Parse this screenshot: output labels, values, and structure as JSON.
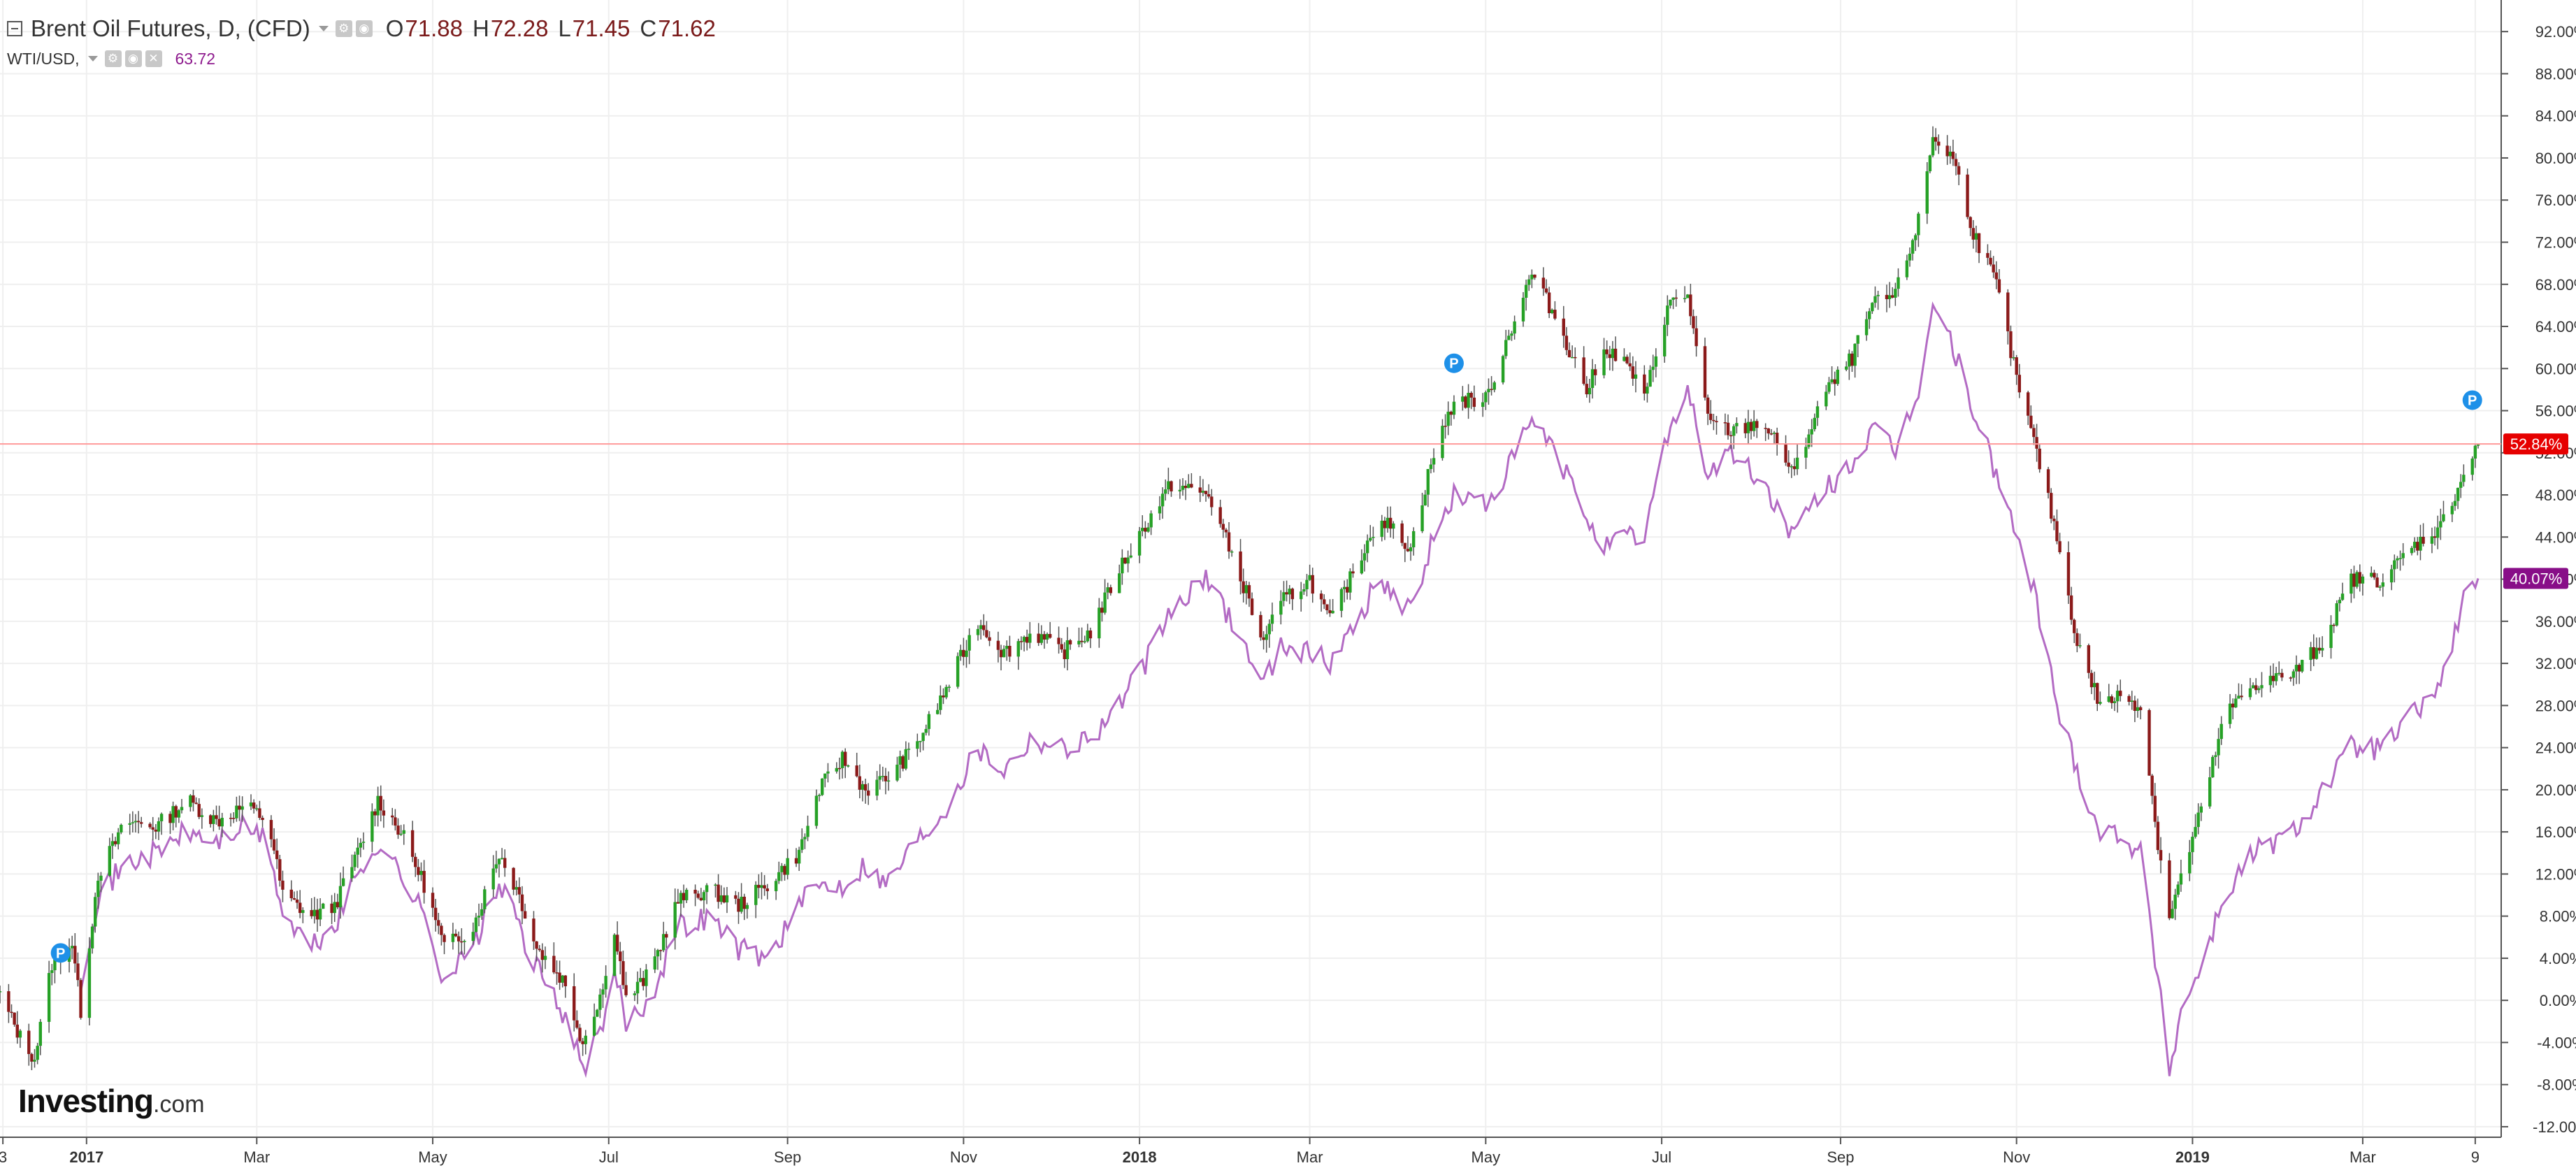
{
  "header": {
    "symbol_title": "Brent Oil Futures, D, (CFD)",
    "open_label": "O",
    "open": "71.88",
    "high_label": "H",
    "high": "72.28",
    "low_label": "L",
    "low": "71.45",
    "close_label": "C",
    "close": "71.62",
    "compare_symbol": "WTI/USD,",
    "compare_value": "63.72",
    "icons": [
      "collapse-icon",
      "dropdown-icon",
      "settings-icon",
      "eye-icon",
      "close-icon"
    ]
  },
  "logo": {
    "brand": "Investing",
    "suffix": ".com"
  },
  "colors": {
    "up": "#26a126",
    "down": "#8b1a1a",
    "wick": "#555555",
    "compare_line": "#b36bc4",
    "current_line": "#ff9a9a",
    "current_badge": "#e60000",
    "compare_badge": "#880e88",
    "grid": "#efefef",
    "marker": "#1e90e8"
  },
  "chart_data": {
    "type": "line",
    "title": "Brent Oil Futures, D, (CFD)",
    "ylabel": "",
    "y_unit": "percent",
    "ylim": [
      -13,
      95
    ],
    "y_ticks": [
      -12,
      -8,
      -4,
      0,
      4,
      8,
      12,
      16,
      20,
      24,
      28,
      32,
      36,
      40,
      44,
      48,
      52,
      56,
      60,
      64,
      68,
      72,
      76,
      80,
      84,
      88,
      92
    ],
    "x_tick_labels": [
      "3",
      "2017",
      "Mar",
      "May",
      "Jul",
      "Sep",
      "Nov",
      "2018",
      "Mar",
      "May",
      "Jul",
      "Sep",
      "Nov",
      "2019",
      "Mar",
      "9"
    ],
    "x_tick_dates": [
      "2016-12-03",
      "2017-01-01",
      "2017-03-01",
      "2017-05-01",
      "2017-07-01",
      "2017-09-01",
      "2017-11-01",
      "2018-01-01",
      "2018-03-01",
      "2018-05-01",
      "2018-07-01",
      "2018-09-01",
      "2018-11-01",
      "2019-01-01",
      "2019-03-01",
      "2019-04-09"
    ],
    "x_range": [
      "2016-12-02",
      "2019-04-18"
    ],
    "grid": true,
    "legend": "top-left",
    "current_values": {
      "brent": "52.84%",
      "wti": "40.07%"
    },
    "series": [
      {
        "name": "Brent Oil Futures, D, (CFD)",
        "style": "candlestick",
        "points": [
          [
            "2016-12-02",
            0.5
          ],
          [
            "2016-12-09",
            -3.5
          ],
          [
            "2016-12-14",
            -5.5
          ],
          [
            "2016-12-20",
            3.5
          ],
          [
            "2016-12-27",
            5.5
          ],
          [
            "2016-12-30",
            -1.0
          ],
          [
            "2017-01-05",
            12.0
          ],
          [
            "2017-01-15",
            17.0
          ],
          [
            "2017-01-25",
            16.5
          ],
          [
            "2017-02-05",
            19.0
          ],
          [
            "2017-02-15",
            17.0
          ],
          [
            "2017-02-25",
            18.5
          ],
          [
            "2017-03-05",
            17.0
          ],
          [
            "2017-03-10",
            10.0
          ],
          [
            "2017-03-20",
            8.0
          ],
          [
            "2017-03-28",
            9.0
          ],
          [
            "2017-04-05",
            14.0
          ],
          [
            "2017-04-12",
            19.0
          ],
          [
            "2017-04-20",
            16.0
          ],
          [
            "2017-04-28",
            11.0
          ],
          [
            "2017-05-05",
            5.0
          ],
          [
            "2017-05-15",
            7.0
          ],
          [
            "2017-05-24",
            14.0
          ],
          [
            "2017-05-31",
            10.0
          ],
          [
            "2017-06-06",
            5.0
          ],
          [
            "2017-06-15",
            2.0
          ],
          [
            "2017-06-22",
            -4.0
          ],
          [
            "2017-06-30",
            2.0
          ],
          [
            "2017-07-03",
            7.0
          ],
          [
            "2017-07-07",
            0.0
          ],
          [
            "2017-07-15",
            2.5
          ],
          [
            "2017-07-25",
            9.5
          ],
          [
            "2017-08-05",
            10.5
          ],
          [
            "2017-08-15",
            9.0
          ],
          [
            "2017-08-25",
            11.0
          ],
          [
            "2017-09-05",
            14.0
          ],
          [
            "2017-09-12",
            20.0
          ],
          [
            "2017-09-20",
            23.0
          ],
          [
            "2017-09-28",
            20.0
          ],
          [
            "2017-10-05",
            21.0
          ],
          [
            "2017-10-15",
            24.0
          ],
          [
            "2017-10-25",
            29.0
          ],
          [
            "2017-11-06",
            36.0
          ],
          [
            "2017-11-15",
            33.0
          ],
          [
            "2017-11-25",
            35.0
          ],
          [
            "2017-12-05",
            33.0
          ],
          [
            "2017-12-15",
            35.0
          ],
          [
            "2017-12-25",
            41.0
          ],
          [
            "2018-01-05",
            46.0
          ],
          [
            "2018-01-12",
            49.0
          ],
          [
            "2018-01-25",
            48.0
          ],
          [
            "2018-02-08",
            38.0
          ],
          [
            "2018-02-12",
            34.0
          ],
          [
            "2018-02-20",
            38.0
          ],
          [
            "2018-03-01",
            40.0
          ],
          [
            "2018-03-08",
            36.0
          ],
          [
            "2018-03-15",
            40.0
          ],
          [
            "2018-03-25",
            46.0
          ],
          [
            "2018-04-05",
            43.0
          ],
          [
            "2018-04-12",
            51.0
          ],
          [
            "2018-04-20",
            57.0
          ],
          [
            "2018-05-01",
            57.0
          ],
          [
            "2018-05-10",
            64.0
          ],
          [
            "2018-05-17",
            69.0
          ],
          [
            "2018-05-25",
            65.0
          ],
          [
            "2018-06-05",
            58.0
          ],
          [
            "2018-06-12",
            62.0
          ],
          [
            "2018-06-20",
            60.0
          ],
          [
            "2018-06-25",
            57.0
          ],
          [
            "2018-07-03",
            66.0
          ],
          [
            "2018-07-10",
            67.0
          ],
          [
            "2018-07-17",
            55.0
          ],
          [
            "2018-07-25",
            54.0
          ],
          [
            "2018-08-05",
            55.0
          ],
          [
            "2018-08-16",
            50.0
          ],
          [
            "2018-08-25",
            57.0
          ],
          [
            "2018-09-05",
            61.0
          ],
          [
            "2018-09-12",
            66.0
          ],
          [
            "2018-09-20",
            67.0
          ],
          [
            "2018-09-28",
            74.0
          ],
          [
            "2018-10-03",
            82.0
          ],
          [
            "2018-10-10",
            80.0
          ],
          [
            "2018-10-17",
            73.0
          ],
          [
            "2018-10-25",
            68.0
          ],
          [
            "2018-11-01",
            59.0
          ],
          [
            "2018-11-08",
            52.0
          ],
          [
            "2018-11-15",
            44.0
          ],
          [
            "2018-11-22",
            34.0
          ],
          [
            "2018-11-30",
            28.0
          ],
          [
            "2018-12-07",
            29.0
          ],
          [
            "2018-12-14",
            28.0
          ],
          [
            "2018-12-20",
            15.0
          ],
          [
            "2018-12-24",
            8.0
          ],
          [
            "2019-01-05",
            19.0
          ],
          [
            "2019-01-12",
            27.0
          ],
          [
            "2019-01-22",
            30.0
          ],
          [
            "2019-02-05",
            31.0
          ],
          [
            "2019-02-15",
            34.0
          ],
          [
            "2019-02-25",
            40.0
          ],
          [
            "2019-03-08",
            40.0
          ],
          [
            "2019-03-18",
            43.0
          ],
          [
            "2019-03-28",
            45.0
          ],
          [
            "2019-04-05",
            50.0
          ],
          [
            "2019-04-10",
            52.84
          ]
        ]
      },
      {
        "name": "WTI/USD,",
        "style": "line",
        "points": [
          [
            "2016-12-30",
            2.0
          ],
          [
            "2017-01-05",
            10.0
          ],
          [
            "2017-01-15",
            13.0
          ],
          [
            "2017-01-25",
            14.0
          ],
          [
            "2017-02-05",
            16.0
          ],
          [
            "2017-02-15",
            15.0
          ],
          [
            "2017-02-25",
            16.5
          ],
          [
            "2017-03-05",
            15.0
          ],
          [
            "2017-03-10",
            8.0
          ],
          [
            "2017-03-20",
            5.0
          ],
          [
            "2017-03-28",
            7.0
          ],
          [
            "2017-04-05",
            12.0
          ],
          [
            "2017-04-12",
            15.0
          ],
          [
            "2017-04-20",
            12.0
          ],
          [
            "2017-04-28",
            8.0
          ],
          [
            "2017-05-05",
            2.0
          ],
          [
            "2017-05-15",
            5.0
          ],
          [
            "2017-05-24",
            11.0
          ],
          [
            "2017-05-31",
            7.0
          ],
          [
            "2017-06-06",
            3.0
          ],
          [
            "2017-06-15",
            -1.0
          ],
          [
            "2017-06-22",
            -6.5
          ],
          [
            "2017-06-30",
            -2.0
          ],
          [
            "2017-07-03",
            3.0
          ],
          [
            "2017-07-07",
            -2.0
          ],
          [
            "2017-07-15",
            0.0
          ],
          [
            "2017-07-25",
            7.0
          ],
          [
            "2017-08-05",
            8.0
          ],
          [
            "2017-08-15",
            5.0
          ],
          [
            "2017-08-25",
            4.0
          ],
          [
            "2017-09-05",
            9.0
          ],
          [
            "2017-09-12",
            11.0
          ],
          [
            "2017-09-20",
            11.0
          ],
          [
            "2017-09-28",
            13.0
          ],
          [
            "2017-10-05",
            11.0
          ],
          [
            "2017-10-15",
            15.0
          ],
          [
            "2017-10-25",
            18.0
          ],
          [
            "2017-11-06",
            24.0
          ],
          [
            "2017-11-15",
            22.0
          ],
          [
            "2017-11-25",
            25.0
          ],
          [
            "2017-12-05",
            24.0
          ],
          [
            "2017-12-15",
            25.0
          ],
          [
            "2017-12-25",
            28.0
          ],
          [
            "2018-01-05",
            33.0
          ],
          [
            "2018-01-12",
            37.0
          ],
          [
            "2018-01-25",
            40.0
          ],
          [
            "2018-02-08",
            33.0
          ],
          [
            "2018-02-12",
            30.0
          ],
          [
            "2018-02-20",
            34.0
          ],
          [
            "2018-03-01",
            33.0
          ],
          [
            "2018-03-08",
            32.0
          ],
          [
            "2018-03-15",
            35.0
          ],
          [
            "2018-03-25",
            40.0
          ],
          [
            "2018-04-05",
            37.0
          ],
          [
            "2018-04-12",
            43.0
          ],
          [
            "2018-04-20",
            48.0
          ],
          [
            "2018-05-01",
            47.0
          ],
          [
            "2018-05-10",
            51.0
          ],
          [
            "2018-05-17",
            55.0
          ],
          [
            "2018-05-25",
            52.0
          ],
          [
            "2018-06-05",
            46.0
          ],
          [
            "2018-06-12",
            43.0
          ],
          [
            "2018-06-20",
            44.0
          ],
          [
            "2018-06-25",
            44.0
          ],
          [
            "2018-07-03",
            54.0
          ],
          [
            "2018-07-10",
            58.0
          ],
          [
            "2018-07-17",
            50.0
          ],
          [
            "2018-07-25",
            52.0
          ],
          [
            "2018-08-05",
            49.0
          ],
          [
            "2018-08-16",
            44.0
          ],
          [
            "2018-08-25",
            48.0
          ],
          [
            "2018-09-05",
            51.0
          ],
          [
            "2018-09-12",
            54.0
          ],
          [
            "2018-09-20",
            52.0
          ],
          [
            "2018-09-28",
            58.0
          ],
          [
            "2018-10-03",
            66.0
          ],
          [
            "2018-10-10",
            62.0
          ],
          [
            "2018-10-17",
            56.0
          ],
          [
            "2018-10-25",
            50.0
          ],
          [
            "2018-11-01",
            44.0
          ],
          [
            "2018-11-08",
            38.0
          ],
          [
            "2018-11-15",
            28.0
          ],
          [
            "2018-11-22",
            22.0
          ],
          [
            "2018-11-30",
            16.0
          ],
          [
            "2018-12-07",
            16.0
          ],
          [
            "2018-12-14",
            14.0
          ],
          [
            "2018-12-20",
            2.0
          ],
          [
            "2018-12-24",
            -6.5
          ],
          [
            "2018-12-28",
            -1.0
          ],
          [
            "2019-01-05",
            4.0
          ],
          [
            "2019-01-12",
            10.0
          ],
          [
            "2019-01-22",
            14.0
          ],
          [
            "2019-02-05",
            16.0
          ],
          [
            "2019-02-15",
            20.0
          ],
          [
            "2019-02-25",
            24.0
          ],
          [
            "2019-03-08",
            24.0
          ],
          [
            "2019-03-18",
            27.0
          ],
          [
            "2019-03-28",
            30.0
          ],
          [
            "2019-04-05",
            38.0
          ],
          [
            "2019-04-10",
            40.07
          ]
        ]
      }
    ],
    "markers": [
      {
        "label": "P",
        "date": "2016-12-23",
        "value": 4.5
      },
      {
        "label": "P",
        "date": "2018-04-20",
        "value": 60.5
      },
      {
        "label": "P",
        "date": "2019-04-08",
        "value": 57.0
      }
    ]
  }
}
